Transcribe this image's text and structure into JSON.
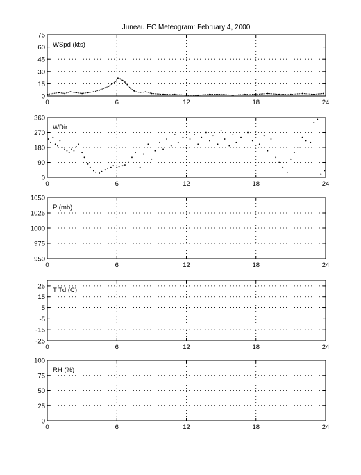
{
  "title": "Juneau EC Meteogram:  February  4, 2000",
  "chart_data": [
    {
      "type": "line",
      "label": "WSpd (kts)",
      "xlim": [
        0,
        24
      ],
      "ylim": [
        0,
        75
      ],
      "xticks": [
        0,
        6,
        12,
        18,
        24
      ],
      "yticks": [
        0,
        15,
        30,
        45,
        60,
        75
      ],
      "grid": true,
      "series": [
        {
          "x": [
            0,
            0.5,
            1,
            1.5,
            2,
            2.5,
            3,
            3.5,
            4,
            4.5,
            5,
            5.3,
            5.6,
            5.9,
            6.1,
            6.3,
            6.5,
            6.7,
            6.9,
            7.2,
            7.5,
            8,
            8.5,
            9,
            10,
            11,
            12,
            13,
            14,
            15,
            16,
            17,
            18,
            19,
            20,
            21,
            22,
            23,
            23.8
          ],
          "y": [
            2,
            3,
            4,
            3,
            5,
            4,
            3,
            4,
            5,
            7,
            10,
            12,
            15,
            18,
            22,
            21,
            19,
            17,
            14,
            9,
            6,
            4,
            5,
            3,
            2,
            2,
            1,
            1,
            2,
            2,
            1,
            2,
            2,
            3,
            2,
            2,
            3,
            2,
            3
          ]
        }
      ]
    },
    {
      "type": "scatter",
      "label": "WDir",
      "xlim": [
        0,
        24
      ],
      "ylim": [
        0,
        360
      ],
      "xticks": [
        0,
        6,
        12,
        18,
        24
      ],
      "yticks": [
        0,
        90,
        180,
        270,
        360
      ],
      "grid": true,
      "series": [
        {
          "x": [
            0.1,
            0.3,
            0.5,
            0.7,
            0.9,
            1.1,
            1.3,
            1.5,
            1.7,
            1.9,
            2.1,
            2.3,
            2.5,
            2.7,
            3.0,
            3.2,
            3.5,
            3.7,
            4.0,
            4.2,
            4.5,
            4.7,
            5.0,
            5.2,
            5.5,
            5.7,
            6.0,
            6.2,
            6.5,
            6.7,
            7.0,
            7.3,
            7.6,
            8.0,
            8.3,
            8.7,
            9.0,
            9.3,
            9.7,
            10.0,
            10.3,
            10.7,
            11.0,
            11.3,
            11.7,
            12.0,
            12.3,
            12.7,
            13.0,
            13.3,
            13.7,
            14.0,
            14.3,
            14.7,
            15.0,
            15.3,
            15.7,
            16.0,
            16.3,
            16.7,
            17.0,
            17.3,
            17.7,
            18.0,
            18.3,
            18.7,
            19.0,
            19.3,
            19.7,
            20.0,
            20.3,
            20.7,
            21.0,
            21.3,
            21.7,
            22.0,
            22.3,
            22.7,
            23.0,
            23.3,
            23.6,
            23.9
          ],
          "y": [
            230,
            210,
            240,
            200,
            190,
            220,
            180,
            170,
            160,
            150,
            170,
            160,
            185,
            200,
            150,
            120,
            80,
            60,
            40,
            30,
            25,
            35,
            45,
            55,
            60,
            70,
            60,
            65,
            70,
            75,
            90,
            120,
            150,
            60,
            140,
            200,
            110,
            160,
            210,
            170,
            230,
            190,
            260,
            210,
            240,
            180,
            230,
            260,
            200,
            240,
            270,
            220,
            250,
            200,
            280,
            230,
            190,
            260,
            210,
            240,
            180,
            270,
            220,
            260,
            200,
            250,
            160,
            230,
            120,
            90,
            60,
            30,
            110,
            150,
            180,
            240,
            220,
            210,
            330,
            350,
            20,
            40
          ]
        }
      ]
    },
    {
      "type": "line",
      "label": "P (mb)",
      "xlim": [
        0,
        24
      ],
      "ylim": [
        950,
        1050
      ],
      "xticks": [
        0,
        6,
        12,
        18,
        24
      ],
      "yticks": [
        950,
        975,
        1000,
        1025,
        1050
      ],
      "grid": true,
      "series": []
    },
    {
      "type": "line",
      "label": "T Td (C)",
      "xlim": [
        0,
        24
      ],
      "ylim": [
        -25,
        30
      ],
      "xticks": [
        0,
        6,
        12,
        18,
        24
      ],
      "yticks": [
        -25,
        -15,
        -5,
        5,
        15,
        25
      ],
      "grid": true,
      "series": []
    },
    {
      "type": "line",
      "label": "RH (%)",
      "xlim": [
        0,
        24
      ],
      "ylim": [
        0,
        100
      ],
      "xticks": [
        0,
        6,
        12,
        18,
        24
      ],
      "yticks": [
        0,
        25,
        50,
        75,
        100
      ],
      "grid": true,
      "series": []
    }
  ]
}
